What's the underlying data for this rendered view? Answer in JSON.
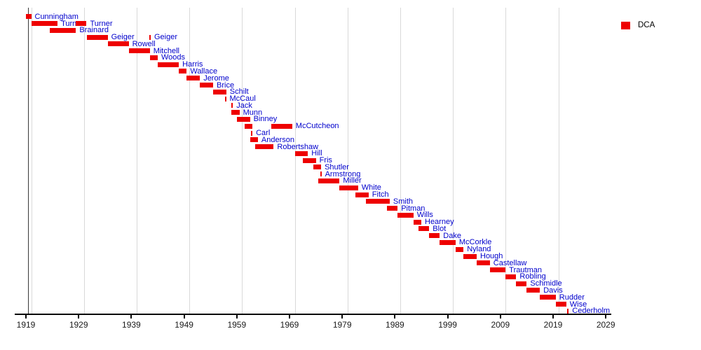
{
  "legend": {
    "items": [
      {
        "label": "DCA",
        "color": "#ee0000"
      }
    ]
  },
  "chart_data": {
    "type": "bar",
    "variant": "horizontal-timeline-gantt",
    "title": "",
    "xlabel": "",
    "ylabel": "",
    "xlim": [
      1919,
      2029
    ],
    "x_ticks": [
      1919,
      1929,
      1939,
      1949,
      1959,
      1969,
      1979,
      1989,
      1999,
      2009,
      2019,
      2029
    ],
    "gridline_years": [
      1920,
      1930,
      1940,
      1950,
      1960,
      1970,
      1980,
      1990,
      2000,
      2010,
      2020
    ],
    "grid": true,
    "legend_position": "top-right",
    "bar_color": "#ee0000",
    "label_color": "#0000cc",
    "rows": [
      {
        "name": "Cunningham",
        "terms": [
          {
            "start": 1919,
            "end": 1920
          }
        ]
      },
      {
        "name": "Turner",
        "terms": [
          {
            "start": 1920,
            "end": 1925
          },
          {
            "start": 1928.5,
            "end": 1930.5
          }
        ]
      },
      {
        "name": "Brainard",
        "terms": [
          {
            "start": 1923.5,
            "end": 1928.5
          }
        ]
      },
      {
        "name": "Geiger",
        "terms": [
          {
            "start": 1930.5,
            "end": 1934.5
          },
          {
            "start": 1942.4,
            "end": 1942.4
          }
        ]
      },
      {
        "name": "Rowell",
        "terms": [
          {
            "start": 1934.5,
            "end": 1938.5
          }
        ]
      },
      {
        "name": "Mitchell",
        "terms": [
          {
            "start": 1938.5,
            "end": 1942.5
          }
        ]
      },
      {
        "name": "Woods",
        "terms": [
          {
            "start": 1942.5,
            "end": 1944
          }
        ]
      },
      {
        "name": "Harris",
        "terms": [
          {
            "start": 1944,
            "end": 1948
          }
        ]
      },
      {
        "name": "Wallace",
        "terms": [
          {
            "start": 1948,
            "end": 1949.5
          }
        ]
      },
      {
        "name": "Jerome",
        "terms": [
          {
            "start": 1949.5,
            "end": 1952
          }
        ]
      },
      {
        "name": "Brice",
        "terms": [
          {
            "start": 1952,
            "end": 1954.5
          }
        ]
      },
      {
        "name": "Schilt",
        "terms": [
          {
            "start": 1954.5,
            "end": 1957
          }
        ]
      },
      {
        "name": "McCaul",
        "terms": [
          {
            "start": 1956.7,
            "end": 1956.7
          }
        ]
      },
      {
        "name": "Jack",
        "terms": [
          {
            "start": 1958,
            "end": 1958
          }
        ]
      },
      {
        "name": "Munn",
        "terms": [
          {
            "start": 1958,
            "end": 1959.5
          }
        ]
      },
      {
        "name": "Binney",
        "terms": [
          {
            "start": 1959,
            "end": 1961.5
          }
        ]
      },
      {
        "name": "McCutcheon",
        "terms": [
          {
            "start": 1960.5,
            "end": 1962,
            "labeled": false
          },
          {
            "start": 1965.5,
            "end": 1969.5
          }
        ]
      },
      {
        "name": "Carl",
        "terms": [
          {
            "start": 1961.7,
            "end": 1961.7
          }
        ]
      },
      {
        "name": "Anderson",
        "terms": [
          {
            "start": 1961.5,
            "end": 1963
          }
        ]
      },
      {
        "name": "Robertshaw",
        "terms": [
          {
            "start": 1962.5,
            "end": 1966
          }
        ]
      },
      {
        "name": "Hill",
        "terms": [
          {
            "start": 1970,
            "end": 1972.5
          }
        ]
      },
      {
        "name": "Fris",
        "terms": [
          {
            "start": 1971.5,
            "end": 1974
          }
        ]
      },
      {
        "name": "Shutler",
        "terms": [
          {
            "start": 1973.5,
            "end": 1975
          }
        ]
      },
      {
        "name": "Armstrong",
        "terms": [
          {
            "start": 1974.8,
            "end": 1974.8
          }
        ]
      },
      {
        "name": "Miller",
        "terms": [
          {
            "start": 1974.5,
            "end": 1978.5
          }
        ]
      },
      {
        "name": "White",
        "terms": [
          {
            "start": 1978.5,
            "end": 1982
          }
        ]
      },
      {
        "name": "Fitch",
        "terms": [
          {
            "start": 1981.5,
            "end": 1984
          }
        ]
      },
      {
        "name": "Smith",
        "terms": [
          {
            "start": 1983.5,
            "end": 1988
          }
        ]
      },
      {
        "name": "Pitman",
        "terms": [
          {
            "start": 1987.5,
            "end": 1989.5
          }
        ]
      },
      {
        "name": "Wills",
        "terms": [
          {
            "start": 1989.5,
            "end": 1992.5
          }
        ]
      },
      {
        "name": "Hearney",
        "terms": [
          {
            "start": 1992.5,
            "end": 1994
          }
        ]
      },
      {
        "name": "Blot",
        "terms": [
          {
            "start": 1993.5,
            "end": 1995.5
          }
        ]
      },
      {
        "name": "Dake",
        "terms": [
          {
            "start": 1995.5,
            "end": 1997.5
          }
        ]
      },
      {
        "name": "McCorkle",
        "terms": [
          {
            "start": 1997.5,
            "end": 2000.5
          }
        ]
      },
      {
        "name": "Nyland",
        "terms": [
          {
            "start": 2000.5,
            "end": 2002
          }
        ]
      },
      {
        "name": "Hough",
        "terms": [
          {
            "start": 2002,
            "end": 2004.5
          }
        ]
      },
      {
        "name": "Castellaw",
        "terms": [
          {
            "start": 2004.5,
            "end": 2007
          }
        ]
      },
      {
        "name": "Trautman",
        "terms": [
          {
            "start": 2007,
            "end": 2010
          }
        ]
      },
      {
        "name": "Robling",
        "terms": [
          {
            "start": 2010,
            "end": 2012
          }
        ]
      },
      {
        "name": "Schmidle",
        "terms": [
          {
            "start": 2012,
            "end": 2014
          }
        ]
      },
      {
        "name": "Davis",
        "terms": [
          {
            "start": 2014,
            "end": 2016.5
          }
        ]
      },
      {
        "name": "Rudder",
        "terms": [
          {
            "start": 2016.5,
            "end": 2019.5
          }
        ]
      },
      {
        "name": "Wise",
        "terms": [
          {
            "start": 2019.5,
            "end": 2021.5
          }
        ]
      },
      {
        "name": "Cederholm",
        "terms": [
          {
            "start": 2021.7,
            "end": 2021.7
          }
        ]
      }
    ]
  }
}
